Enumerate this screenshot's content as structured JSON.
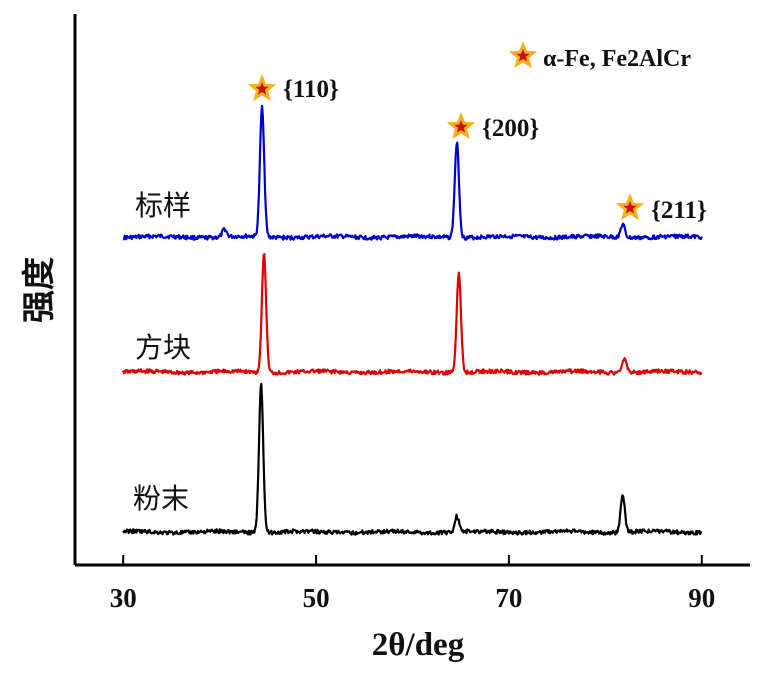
{
  "chart_data": {
    "type": "line",
    "xlabel": "2θ/deg",
    "ylabel": "强度",
    "xlim": [
      25,
      95
    ],
    "xticks": [
      30,
      50,
      70,
      90
    ],
    "yticks": [],
    "legend": {
      "text": "α-Fe, Fe2AlCr",
      "marker": "star",
      "position": "top-right"
    },
    "series": [
      {
        "name": "标样",
        "color": "#0000cc",
        "peaks": [
          {
            "x": 40.5,
            "height": 0.06
          },
          {
            "x": 44.4,
            "height": 1.0
          },
          {
            "x": 64.6,
            "height": 0.73
          },
          {
            "x": 81.8,
            "height": 0.1
          }
        ]
      },
      {
        "name": "方块",
        "color": "#dd0000",
        "peaks": [
          {
            "x": 44.6,
            "height": 0.95
          },
          {
            "x": 64.8,
            "height": 0.8
          },
          {
            "x": 82.0,
            "height": 0.12
          }
        ]
      },
      {
        "name": "粉末",
        "color": "#000000",
        "peaks": [
          {
            "x": 44.3,
            "height": 1.15
          },
          {
            "x": 64.6,
            "height": 0.12
          },
          {
            "x": 81.8,
            "height": 0.28
          }
        ]
      }
    ],
    "annotations": [
      {
        "text": "{110}",
        "x": 44.4,
        "marker": "star"
      },
      {
        "text": "{200}",
        "x": 64.6,
        "marker": "star"
      },
      {
        "text": "{211}",
        "x": 81.8,
        "marker": "star"
      }
    ]
  },
  "colors": {
    "star_fill": "#f6b21c",
    "star_center": "#cc1010",
    "axis": "#000000"
  }
}
